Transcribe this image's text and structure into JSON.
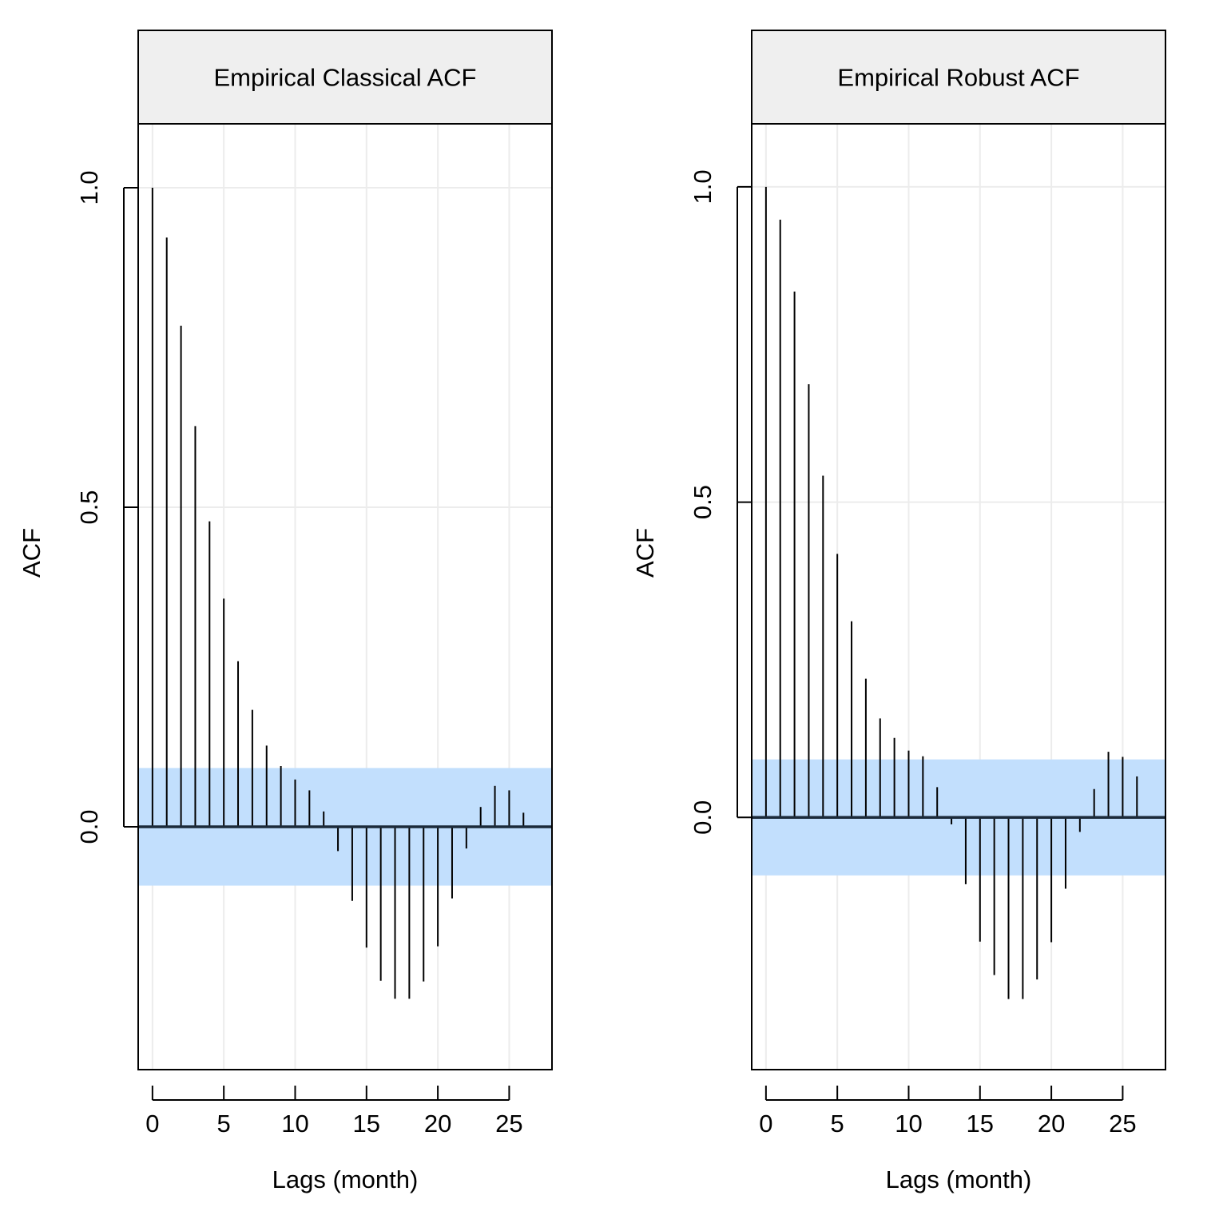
{
  "chart_data": [
    {
      "type": "bar",
      "title": "Empirical Classical ACF",
      "xlabel": "Lags (month)",
      "ylabel": "ACF",
      "xlim": [
        -1,
        28
      ],
      "ylim": [
        -0.38,
        1.1
      ],
      "xticks": [
        0,
        5,
        10,
        15,
        20,
        25
      ],
      "xtick_labels": [
        "0",
        "5",
        "10",
        "15",
        "20",
        "25"
      ],
      "yticks": [
        0,
        0.5,
        1
      ],
      "ytick_labels": [
        "0.0",
        "0.5",
        "1.0"
      ],
      "grid": true,
      "confidence_band": [
        -0.092,
        0.092
      ],
      "band_color": "#c2dffd",
      "strip_color": "#efefef",
      "lags": [
        0,
        1,
        2,
        3,
        4,
        5,
        6,
        7,
        8,
        9,
        10,
        11,
        12,
        13,
        14,
        15,
        16,
        17,
        18,
        19,
        20,
        21,
        22,
        23,
        24,
        25,
        26
      ],
      "values": [
        1.0,
        0.922,
        0.784,
        0.627,
        0.478,
        0.357,
        0.259,
        0.183,
        0.127,
        0.095,
        0.074,
        0.057,
        0.024,
        -0.038,
        -0.116,
        -0.189,
        -0.241,
        -0.269,
        -0.269,
        -0.242,
        -0.187,
        -0.112,
        -0.034,
        0.031,
        0.064,
        0.057,
        0.022
      ]
    },
    {
      "type": "bar",
      "title": "Empirical Robust ACF",
      "xlabel": "Lags (month)",
      "ylabel": "ACF",
      "xlim": [
        -1,
        28
      ],
      "ylim": [
        -0.4,
        1.1
      ],
      "xticks": [
        0,
        5,
        10,
        15,
        20,
        25
      ],
      "xtick_labels": [
        "0",
        "5",
        "10",
        "15",
        "20",
        "25"
      ],
      "yticks": [
        0,
        0.5,
        1
      ],
      "ytick_labels": [
        "0.0",
        "0.5",
        "1.0"
      ],
      "grid": true,
      "confidence_band": [
        -0.092,
        0.092
      ],
      "band_color": "#c2dffd",
      "strip_color": "#efefef",
      "lags": [
        0,
        1,
        2,
        3,
        4,
        5,
        6,
        7,
        8,
        9,
        10,
        11,
        12,
        13,
        14,
        15,
        16,
        17,
        18,
        19,
        20,
        21,
        22,
        23,
        24,
        25,
        26
      ],
      "values": [
        1.0,
        0.948,
        0.834,
        0.687,
        0.542,
        0.418,
        0.311,
        0.22,
        0.157,
        0.126,
        0.106,
        0.097,
        0.048,
        -0.011,
        -0.106,
        -0.197,
        -0.25,
        -0.288,
        -0.288,
        -0.257,
        -0.198,
        -0.113,
        -0.023,
        0.045,
        0.104,
        0.096,
        0.065
      ]
    }
  ]
}
